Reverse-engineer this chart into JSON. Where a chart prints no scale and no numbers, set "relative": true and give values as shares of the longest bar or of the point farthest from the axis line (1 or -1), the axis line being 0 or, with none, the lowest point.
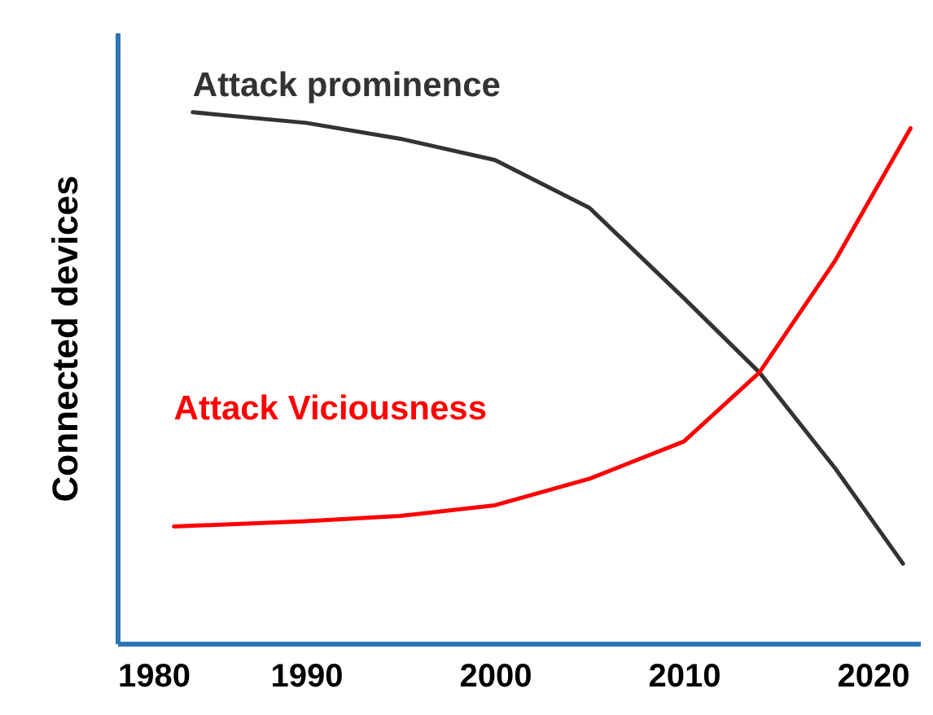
{
  "chart_data": {
    "type": "line",
    "relative": true,
    "ylabel": "Connected devices",
    "xlim": [
      1980,
      2022.5
    ],
    "xticks": [
      1980,
      1990,
      2000,
      2010,
      2020
    ],
    "line_style": "solid",
    "marker": "none",
    "grid": false,
    "legend": false,
    "series": [
      {
        "name": "Attack prominence",
        "color": "#333333",
        "x": [
          1984,
          1990,
          1995,
          2000,
          2005,
          2010,
          2014,
          2018,
          2021.6
        ],
        "values": [
          1.0,
          0.98,
          0.95,
          0.91,
          0.82,
          0.65,
          0.51,
          0.33,
          0.15
        ]
      },
      {
        "name": "Attack Viciousness",
        "color": "#ff0000",
        "x": [
          1983,
          1990,
          1995,
          2000,
          2005,
          2010,
          2014,
          2018,
          2022
        ],
        "values": [
          0.22,
          0.23,
          0.24,
          0.26,
          0.31,
          0.38,
          0.51,
          0.72,
          0.97
        ]
      }
    ]
  }
}
